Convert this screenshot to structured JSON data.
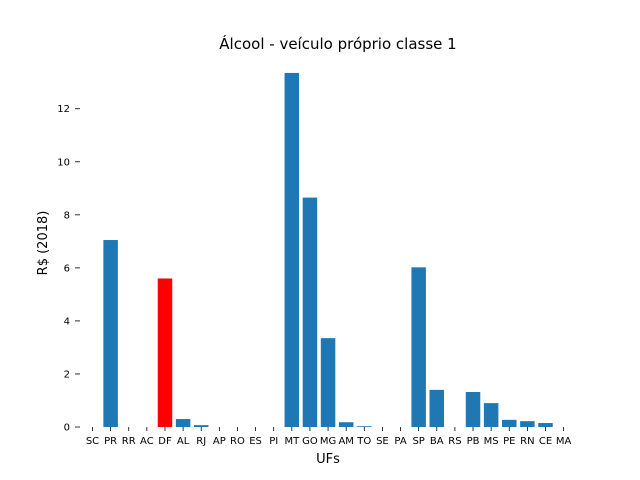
{
  "chart_data": {
    "type": "bar",
    "title": "Álcool - veículo próprio classe 1",
    "xlabel": "UFs",
    "ylabel": "R$ (2018)",
    "ylim": [
      0,
      13.8
    ],
    "yticks": [
      0,
      2,
      4,
      6,
      8,
      10,
      12
    ],
    "grid": false,
    "categories": [
      "SC",
      "PR",
      "RR",
      "AC",
      "DF",
      "AL",
      "RJ",
      "AP",
      "RO",
      "ES",
      "PI",
      "MT",
      "GO",
      "MG",
      "AM",
      "TO",
      "SE",
      "PA",
      "SP",
      "BA",
      "RS",
      "PB",
      "MS",
      "PE",
      "RN",
      "CE",
      "MA"
    ],
    "values": [
      0,
      7.05,
      0,
      0,
      5.6,
      0.3,
      0.07,
      0,
      0,
      0,
      0,
      13.35,
      8.65,
      3.35,
      0.18,
      0.03,
      0,
      0,
      6.02,
      1.4,
      0,
      1.32,
      0.9,
      0.27,
      0.22,
      0.15,
      0
    ],
    "highlight": "DF",
    "colors": {
      "bar": "#1f77b4",
      "highlight": "#ff0000"
    }
  }
}
